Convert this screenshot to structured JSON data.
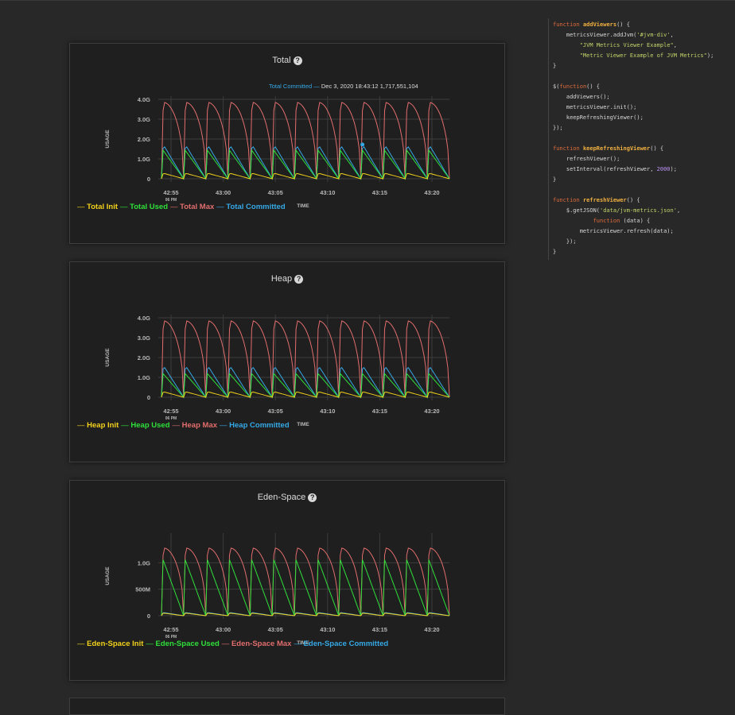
{
  "colors": {
    "init": "#f2d21b",
    "used": "#2fe03a",
    "max": "#e26d6d",
    "committed": "#35a9e6",
    "grid": "#3c3c3c",
    "axis_text": "#b8b8b8"
  },
  "panels": [
    {
      "title": "Total",
      "tooltip": {
        "series": "Total Committed",
        "dash": "—",
        "date": "Dec 3, 2020 18:43:12",
        "value": "1,717,551,104"
      },
      "legend": [
        {
          "label": "Total Init",
          "series": "init"
        },
        {
          "label": "Total Used",
          "series": "used"
        },
        {
          "label": "Total Max",
          "series": "max"
        },
        {
          "label": "Total Committed",
          "series": "committed"
        }
      ],
      "chart_data": {
        "type": "line",
        "ylabel": "USAGE",
        "xlabel": "TIME",
        "yticks": [
          "4.0G",
          "3.0G",
          "2.0G",
          "1.0G",
          "0"
        ],
        "ytick_values": [
          4.0,
          3.0,
          2.0,
          1.0,
          0
        ],
        "ylim": [
          0,
          4.0
        ],
        "xticks": [
          "42:55",
          "43:00",
          "43:05",
          "43:10",
          "43:15",
          "43:20"
        ],
        "x_sublabel": "06 PM",
        "cycles": 13,
        "series_peaks_gb": {
          "max": 3.85,
          "committed": 1.72,
          "used": 1.45,
          "init": 0.28
        }
      }
    },
    {
      "title": "Heap",
      "legend": [
        {
          "label": "Heap Init",
          "series": "init"
        },
        {
          "label": "Heap Used",
          "series": "used"
        },
        {
          "label": "Heap Max",
          "series": "max"
        },
        {
          "label": "Heap Committed",
          "series": "committed"
        }
      ],
      "chart_data": {
        "type": "line",
        "ylabel": "USAGE",
        "xlabel": "TIME",
        "yticks": [
          "4.0G",
          "3.0G",
          "2.0G",
          "1.0G",
          "0"
        ],
        "ytick_values": [
          4.0,
          3.0,
          2.0,
          1.0,
          0
        ],
        "ylim": [
          0,
          4.0
        ],
        "xticks": [
          "42:55",
          "43:00",
          "43:05",
          "43:10",
          "43:15",
          "43:20"
        ],
        "x_sublabel": "06 PM",
        "cycles": 13,
        "series_peaks_gb": {
          "max": 3.85,
          "committed": 1.6,
          "used": 1.2,
          "init": 0.28
        }
      }
    },
    {
      "title": "Eden-Space",
      "legend": [
        {
          "label": "Eden-Space Init",
          "series": "init"
        },
        {
          "label": "Eden-Space Used",
          "series": "used"
        },
        {
          "label": "Eden-Space Max",
          "series": "max"
        },
        {
          "label": "Eden-Space Committed",
          "series": "committed"
        }
      ],
      "chart_data": {
        "type": "line",
        "ylabel": "USAGE",
        "xlabel": "TIME",
        "yticks": [
          "1.0G",
          "500M",
          "0"
        ],
        "ytick_values": [
          1.0,
          0.5,
          0
        ],
        "ylim": [
          0,
          1.5
        ],
        "xticks": [
          "42:55",
          "43:00",
          "43:05",
          "43:10",
          "43:15",
          "43:20"
        ],
        "x_sublabel": "06 PM",
        "cycles": 13,
        "series_peaks_gb": {
          "max": 1.28,
          "committed": 0.06,
          "used": 1.07,
          "init": 0.05
        }
      }
    }
  ],
  "code_lines": [
    [
      [
        "kw",
        "function "
      ],
      [
        "fn",
        "addViewers"
      ],
      [
        "t",
        "() {"
      ]
    ],
    [
      [
        "t",
        "    metricsViewer.addJvm("
      ],
      [
        "str",
        "'#jvm-div'"
      ],
      [
        "t",
        ","
      ]
    ],
    [
      [
        "t",
        "        "
      ],
      [
        "str",
        "\"JVM Metrics Viewer Example\""
      ],
      [
        "t",
        ","
      ]
    ],
    [
      [
        "t",
        "        "
      ],
      [
        "str",
        "\"Metric Viewer Example of JVM Metrics\""
      ],
      [
        "t",
        ");"
      ]
    ],
    [
      [
        "t",
        "}"
      ]
    ],
    [
      [
        "t",
        ""
      ]
    ],
    [
      [
        "t",
        "$("
      ],
      [
        "kw",
        "function"
      ],
      [
        "t",
        "() {"
      ]
    ],
    [
      [
        "t",
        "    addViewers();"
      ]
    ],
    [
      [
        "t",
        "    metricsViewer.init();"
      ]
    ],
    [
      [
        "t",
        "    keepRefreshingViewer();"
      ]
    ],
    [
      [
        "t",
        "});"
      ]
    ],
    [
      [
        "t",
        ""
      ]
    ],
    [
      [
        "kw",
        "function "
      ],
      [
        "fn",
        "keepRefreshingViewer"
      ],
      [
        "t",
        "() {"
      ]
    ],
    [
      [
        "t",
        "    refreshViewer();"
      ]
    ],
    [
      [
        "t",
        "    setInterval(refreshViewer, "
      ],
      [
        "num",
        "2000"
      ],
      [
        "t",
        ");"
      ]
    ],
    [
      [
        "t",
        "}"
      ]
    ],
    [
      [
        "t",
        ""
      ]
    ],
    [
      [
        "kw",
        "function "
      ],
      [
        "fn",
        "refreshViewer"
      ],
      [
        "t",
        "() {"
      ]
    ],
    [
      [
        "t",
        "    $.getJSON("
      ],
      [
        "str",
        "'data/jvm-metrics.json'"
      ],
      [
        "t",
        ","
      ]
    ],
    [
      [
        "t",
        "            "
      ],
      [
        "kw",
        "function"
      ],
      [
        "t",
        " (data) {"
      ]
    ],
    [
      [
        "t",
        "        metricsViewer.refresh(data);"
      ]
    ],
    [
      [
        "t",
        "    });"
      ]
    ],
    [
      [
        "t",
        "}"
      ]
    ]
  ]
}
